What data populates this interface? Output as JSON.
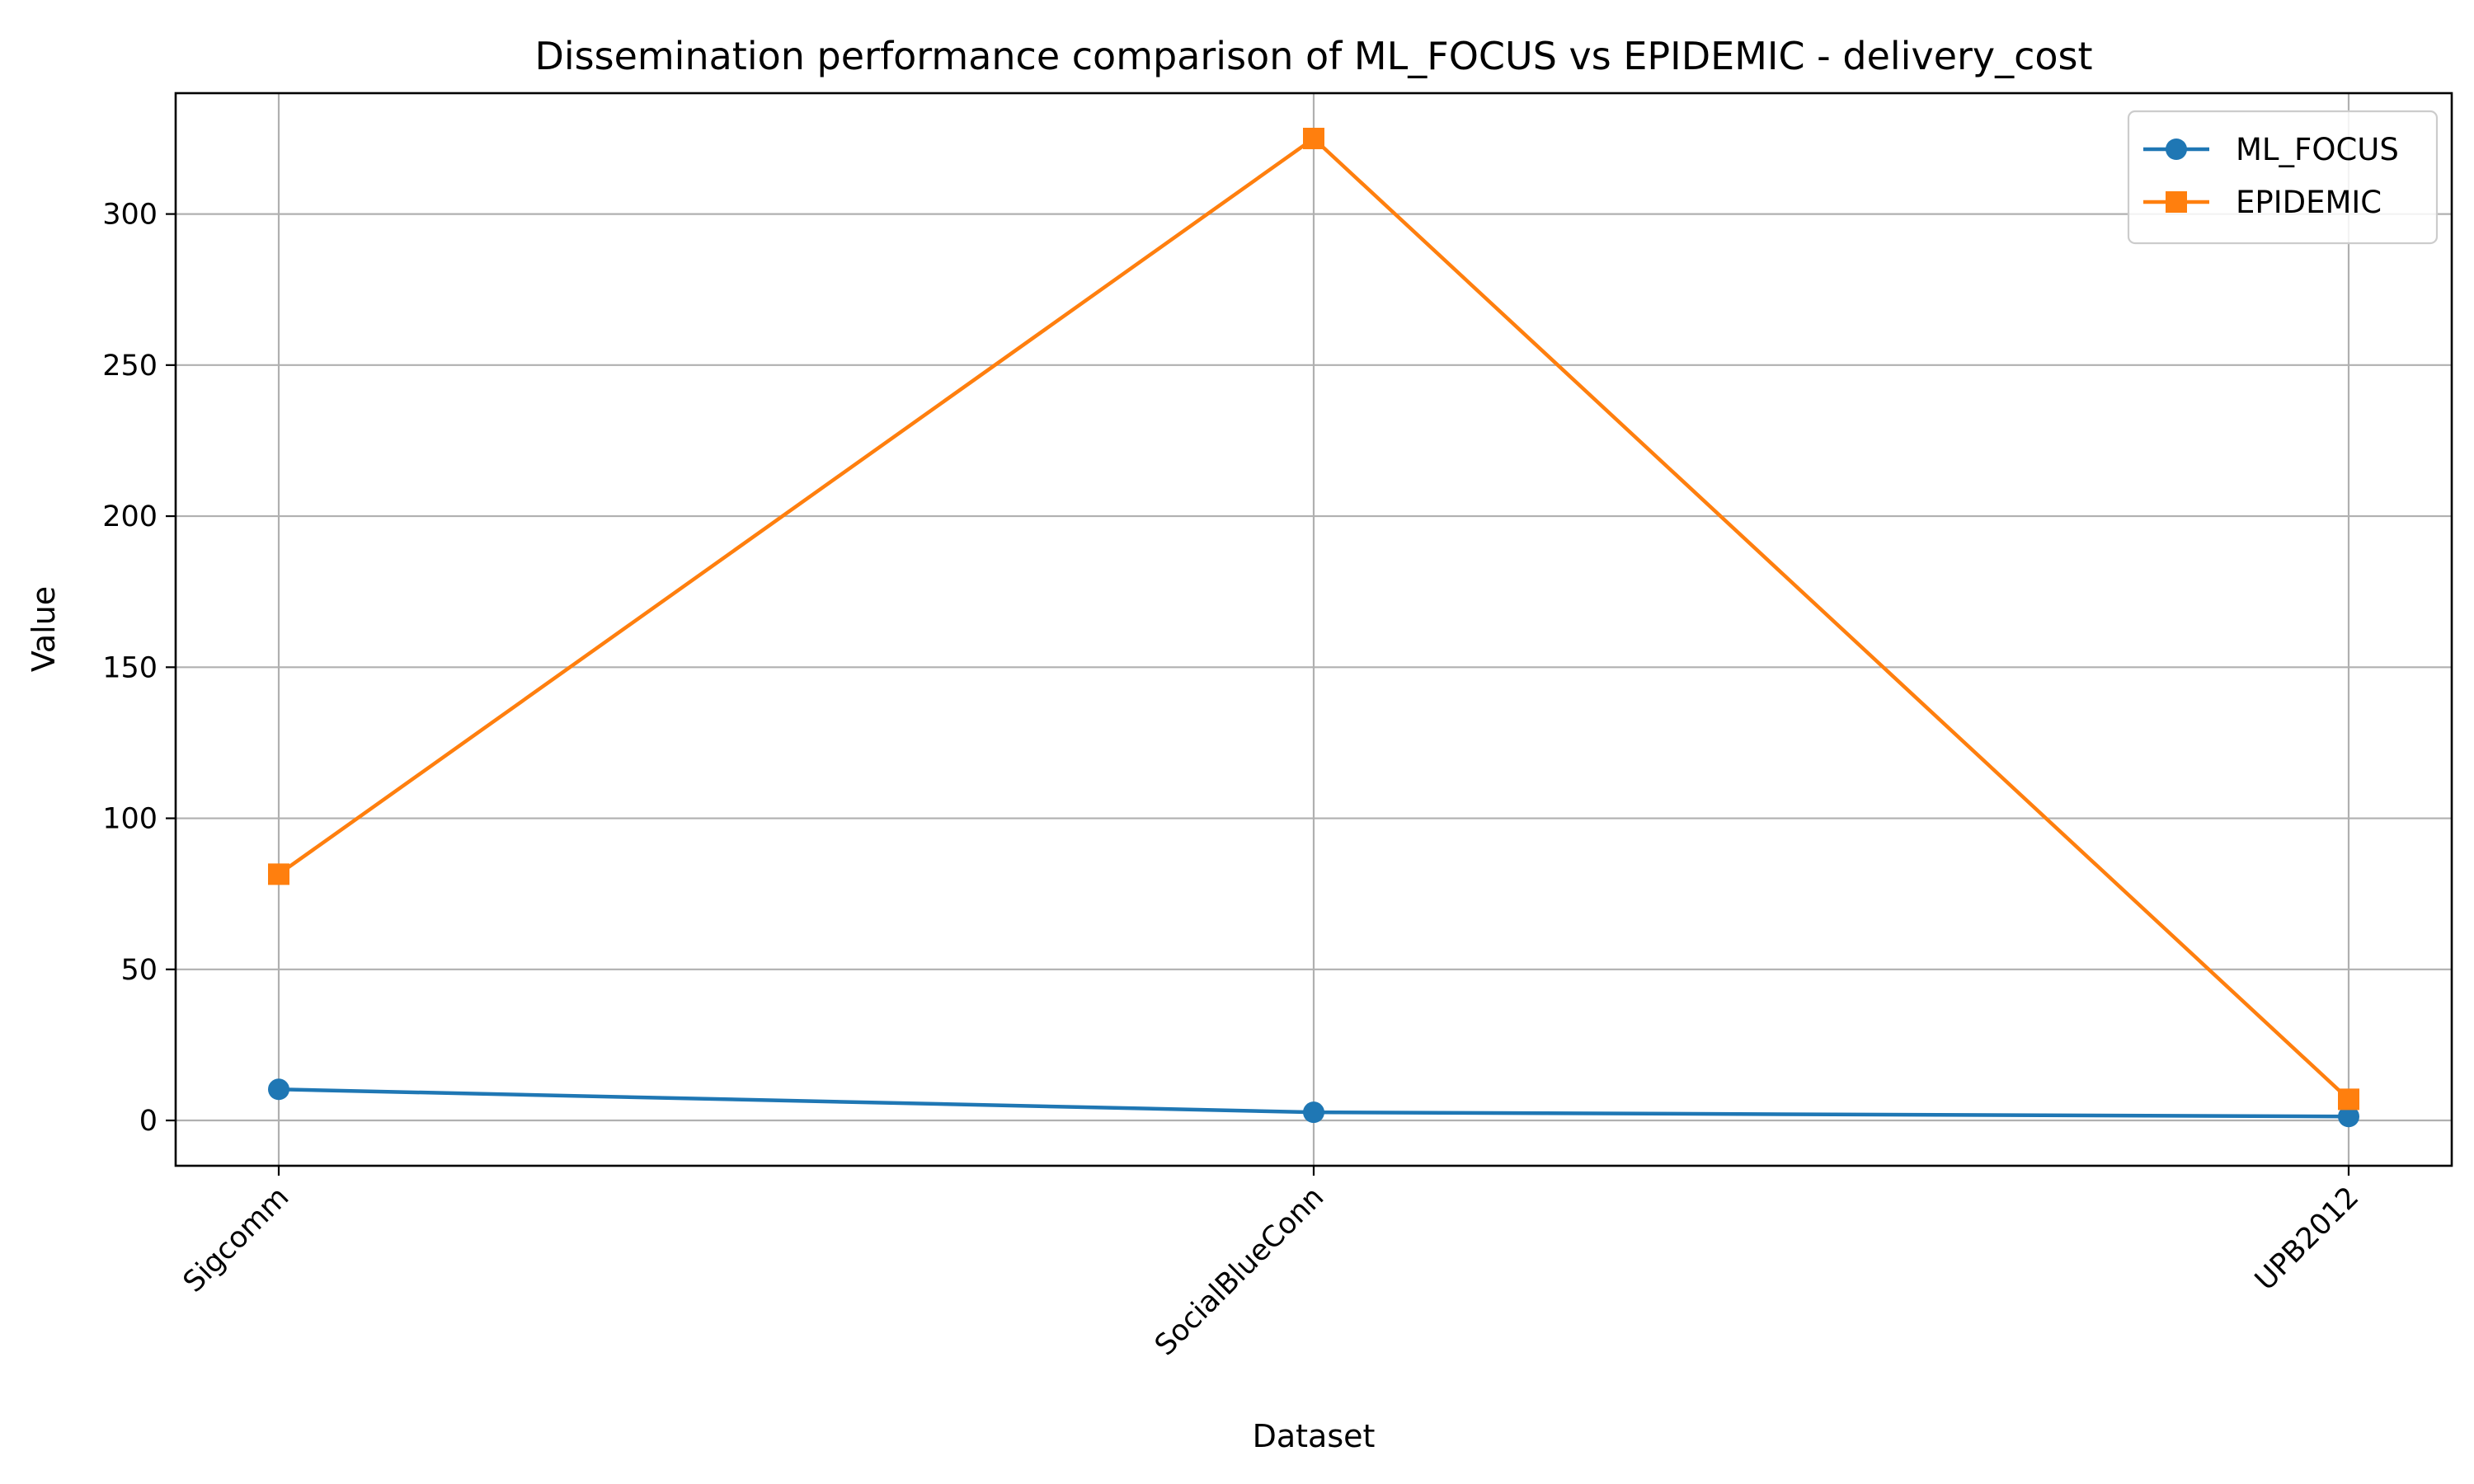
{
  "chart_data": {
    "type": "line",
    "title": "Dissemination performance comparison of ML_FOCUS vs EPIDEMIC - delivery_cost",
    "xlabel": "Dataset",
    "ylabel": "Value",
    "categories": [
      "Sigcomm",
      "SocialBlueConn",
      "UPB2012"
    ],
    "ylim": [
      -15,
      340
    ],
    "yticks": [
      0,
      50,
      100,
      150,
      200,
      250,
      300
    ],
    "grid": true,
    "legend_position": "top-right",
    "series": [
      {
        "name": "ML_FOCUS",
        "color": "#1f77b4",
        "marker": "circle",
        "values": [
          10.3,
          2.7,
          1.3
        ]
      },
      {
        "name": "EPIDEMIC",
        "color": "#ff7f0e",
        "marker": "square",
        "values": [
          81.5,
          325.0,
          7.0
        ]
      }
    ]
  }
}
